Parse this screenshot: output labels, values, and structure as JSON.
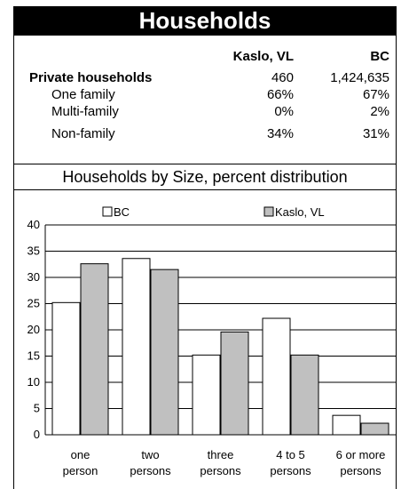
{
  "header": {
    "title": "Households"
  },
  "stats": {
    "columns": [
      "Kaslo, VL",
      "BC"
    ],
    "rows": [
      {
        "label": "Private households",
        "kaslo": "460",
        "bc": "1,424,635",
        "bold": true
      },
      {
        "label": "One family",
        "kaslo": "66%",
        "bc": "67%",
        "bold": false
      },
      {
        "label": "Multi-family",
        "kaslo": "0%",
        "bc": "2%",
        "bold": false
      },
      {
        "label": "Non-family",
        "kaslo": "34%",
        "bc": "31%",
        "bold": false
      }
    ]
  },
  "chart_data": {
    "type": "bar",
    "title": "Households by Size, percent distribution",
    "categories": [
      [
        "one",
        "person"
      ],
      [
        "two",
        "persons"
      ],
      [
        "three",
        "persons"
      ],
      [
        "4 to 5",
        "persons"
      ],
      [
        "6 or  more",
        "persons"
      ]
    ],
    "series": [
      {
        "name": "BC",
        "color": "#ffffff",
        "values": [
          25.2,
          33.6,
          15.2,
          22.2,
          3.7
        ]
      },
      {
        "name": "Kaslo, VL",
        "color": "#c0c0c0",
        "values": [
          32.6,
          31.5,
          19.6,
          15.2,
          2.2
        ]
      }
    ],
    "ylim": [
      0,
      40
    ],
    "yticks": [
      0,
      5,
      10,
      15,
      20,
      25,
      30,
      35,
      40
    ],
    "grid": true,
    "legend": "top"
  }
}
